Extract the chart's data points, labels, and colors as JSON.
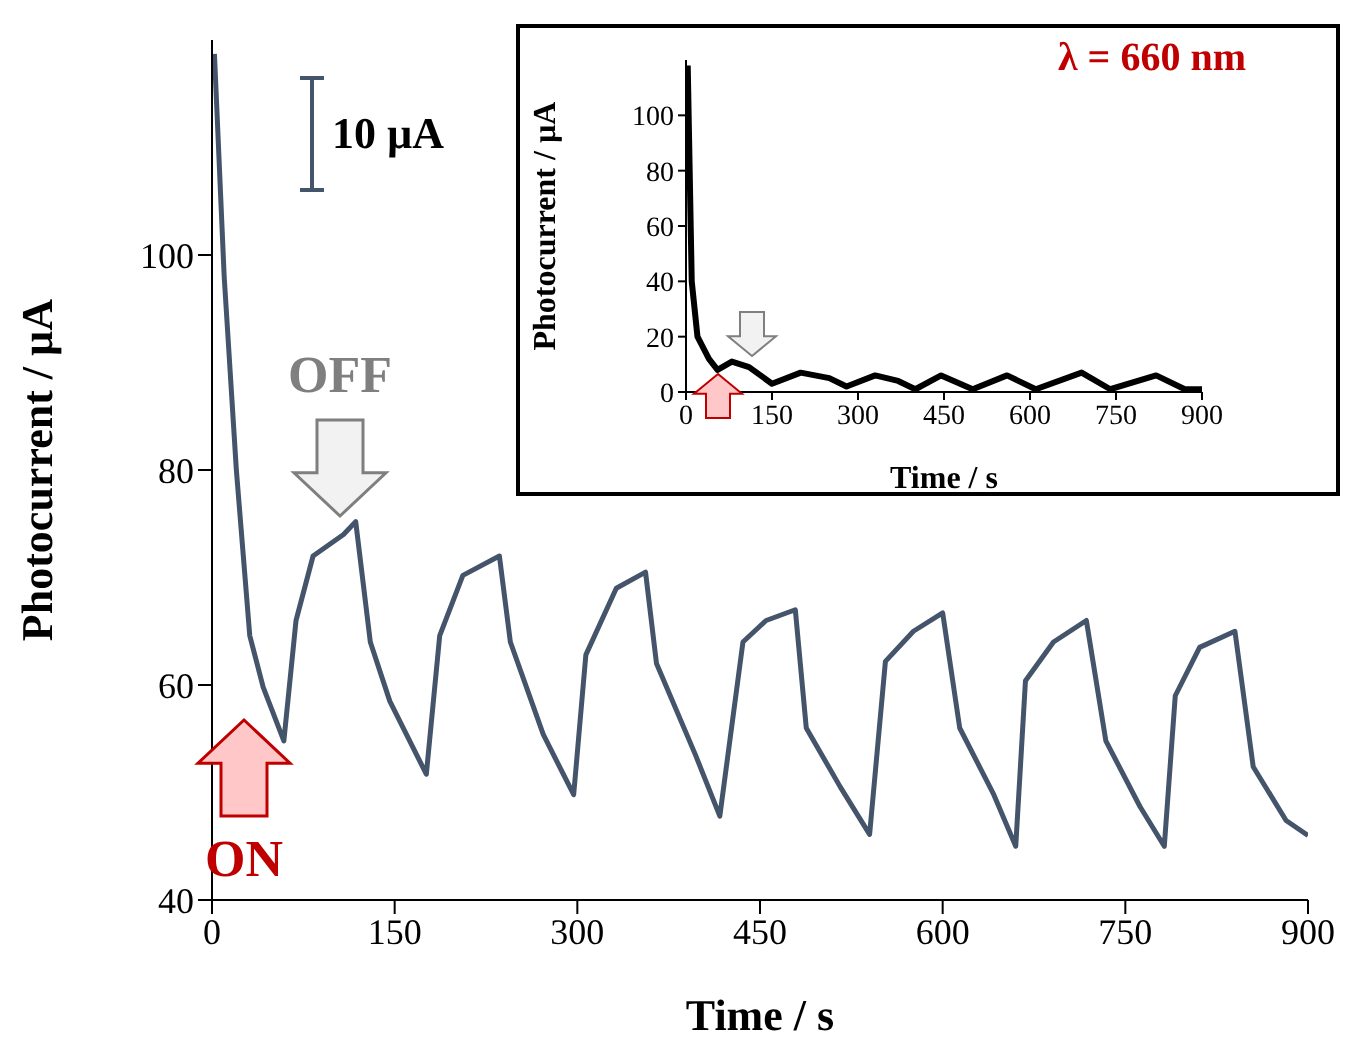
{
  "chart_data": [
    {
      "type": "line",
      "xlabel": "Time / s",
      "ylabel": "Photocurrent / µA",
      "xlim": [
        0,
        900
      ],
      "ylim": [
        40,
        120
      ],
      "xticks": [
        0,
        150,
        300,
        450,
        600,
        750,
        900
      ],
      "yticks": [
        40,
        60,
        80,
        100
      ],
      "marker": "none",
      "line_style": "solid",
      "annotations": [
        "10 µA",
        "OFF",
        "ON"
      ],
      "series": [
        {
          "color": "#44546a",
          "x": [
            2,
            10,
            20,
            31,
            42,
            59,
            69,
            83,
            108,
            118,
            130,
            146,
            176,
            187,
            206,
            236,
            245,
            272,
            297,
            307,
            332,
            356,
            365,
            397,
            417,
            436,
            455,
            479,
            488,
            516,
            540,
            553,
            576,
            600,
            614,
            642,
            660,
            668,
            691,
            718,
            734,
            762,
            782,
            791,
            811,
            840,
            855,
            882,
            900
          ],
          "values": [
            118.7,
            98,
            80,
            64.6,
            59.8,
            54.8,
            66,
            72,
            74,
            75.2,
            64,
            58.5,
            51.7,
            64.6,
            70.2,
            72,
            64,
            55.4,
            49.8,
            62.8,
            69,
            70.5,
            62,
            53.5,
            47.8,
            64,
            66,
            67,
            56,
            50.5,
            46.1,
            62.2,
            65,
            66.7,
            56,
            49.8,
            45,
            60.4,
            64,
            66,
            54.8,
            48.7,
            45,
            59,
            63.5,
            65,
            52.4,
            47.4,
            46
          ]
        }
      ]
    },
    {
      "type": "line",
      "xlabel": "Time  / s",
      "ylabel": "Photocurrent  / µA",
      "xlim": [
        0,
        900
      ],
      "ylim": [
        0,
        120
      ],
      "xticks": [
        0,
        150,
        300,
        450,
        600,
        750,
        900
      ],
      "yticks": [
        0,
        20,
        40,
        60,
        80,
        100
      ],
      "marker": "none",
      "line_style": "solid",
      "annotations": [
        "λ = 660 nm"
      ],
      "series": [
        {
          "color": "#000000",
          "x": [
            3,
            10,
            20,
            40,
            55,
            80,
            110,
            150,
            200,
            250,
            280,
            330,
            370,
            400,
            445,
            500,
            560,
            610,
            690,
            740,
            820,
            870,
            900
          ],
          "values": [
            118,
            40,
            20,
            12,
            8,
            11,
            9,
            3,
            7,
            5,
            2,
            6,
            4,
            1,
            6,
            1,
            6,
            1,
            7,
            1,
            6,
            1,
            1
          ]
        }
      ]
    }
  ]
}
